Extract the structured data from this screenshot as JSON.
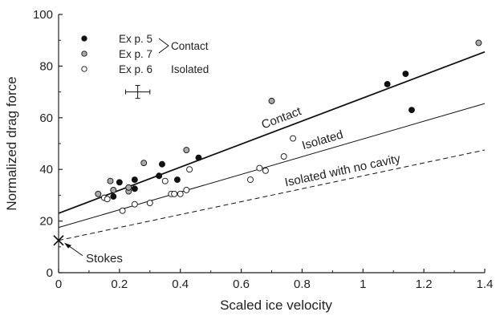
{
  "chart_data": {
    "type": "scatter",
    "title": "",
    "xlabel": "Scaled ice velocity",
    "ylabel": "Normalized drag force",
    "xlim": [
      0,
      1.4
    ],
    "ylim": [
      0,
      100
    ],
    "x_ticks": [
      0,
      0.2,
      0.4,
      0.6,
      0.8,
      1,
      1.2,
      1.4
    ],
    "x_tick_labels": [
      "0",
      "0.2",
      "0.4",
      "0.6",
      "0.8",
      "1",
      "1.2",
      "1.4"
    ],
    "y_ticks": [
      0,
      20,
      40,
      60,
      80,
      100
    ],
    "y_tick_labels": [
      "0",
      "20",
      "40",
      "60",
      "80",
      "100"
    ],
    "grid": false,
    "legend_placement": "top-left",
    "legend_groups": [
      {
        "label": "Contact",
        "series": [
          "Ex p. 5",
          "Ex p. 7"
        ]
      },
      {
        "label": "Isolated",
        "series": [
          "Ex p. 6"
        ]
      }
    ],
    "series": [
      {
        "name": "Ex p. 5",
        "marker": "filled",
        "color": "#111111",
        "points": [
          [
            0.18,
            29.5
          ],
          [
            0.2,
            35
          ],
          [
            0.25,
            32.5
          ],
          [
            0.25,
            36
          ],
          [
            0.33,
            37.5
          ],
          [
            0.34,
            42
          ],
          [
            0.39,
            36
          ],
          [
            0.46,
            44.5
          ],
          [
            1.08,
            73
          ],
          [
            1.14,
            77
          ],
          [
            1.16,
            63
          ]
        ]
      },
      {
        "name": "Ex p. 7",
        "marker": "gray",
        "color": "#aaaaaa",
        "points": [
          [
            0.13,
            30.5
          ],
          [
            0.17,
            35.5
          ],
          [
            0.18,
            32
          ],
          [
            0.23,
            31.5
          ],
          [
            0.23,
            33
          ],
          [
            0.28,
            42.5
          ],
          [
            0.42,
            47.5
          ],
          [
            0.7,
            66.5
          ],
          [
            1.38,
            89
          ]
        ]
      },
      {
        "name": "Ex p. 6",
        "marker": "open",
        "color": "#ffffff",
        "points": [
          [
            0.15,
            29
          ],
          [
            0.16,
            28.5
          ],
          [
            0.21,
            24
          ],
          [
            0.25,
            26.5
          ],
          [
            0.3,
            27
          ],
          [
            0.35,
            35.5
          ],
          [
            0.37,
            30.5
          ],
          [
            0.38,
            30.5
          ],
          [
            0.4,
            30.5
          ],
          [
            0.42,
            32
          ],
          [
            0.43,
            40
          ],
          [
            0.63,
            36
          ],
          [
            0.66,
            40.5
          ],
          [
            0.68,
            39.5
          ],
          [
            0.74,
            45
          ],
          [
            0.77,
            52
          ]
        ]
      }
    ],
    "lines": [
      {
        "label": "Contact",
        "style": "solid",
        "width": 1.8,
        "x": [
          0,
          1.4
        ],
        "y": [
          23,
          85.5
        ]
      },
      {
        "label": "Isolated",
        "style": "solid",
        "width": 1.0,
        "x": [
          0,
          1.4
        ],
        "y": [
          17.5,
          65.5
        ]
      },
      {
        "label": "Isolated with no cavity",
        "style": "dashed",
        "width": 1.0,
        "x": [
          0,
          1.4
        ],
        "y": [
          12.5,
          47.5
        ]
      }
    ],
    "error_bar": {
      "x": 0.26,
      "y": 70,
      "x_half_width": 0.04,
      "y_half_width": 2.5
    },
    "annotations": [
      {
        "text": "Stokes",
        "x": 0,
        "y": 12.5,
        "marker": "x"
      }
    ]
  }
}
